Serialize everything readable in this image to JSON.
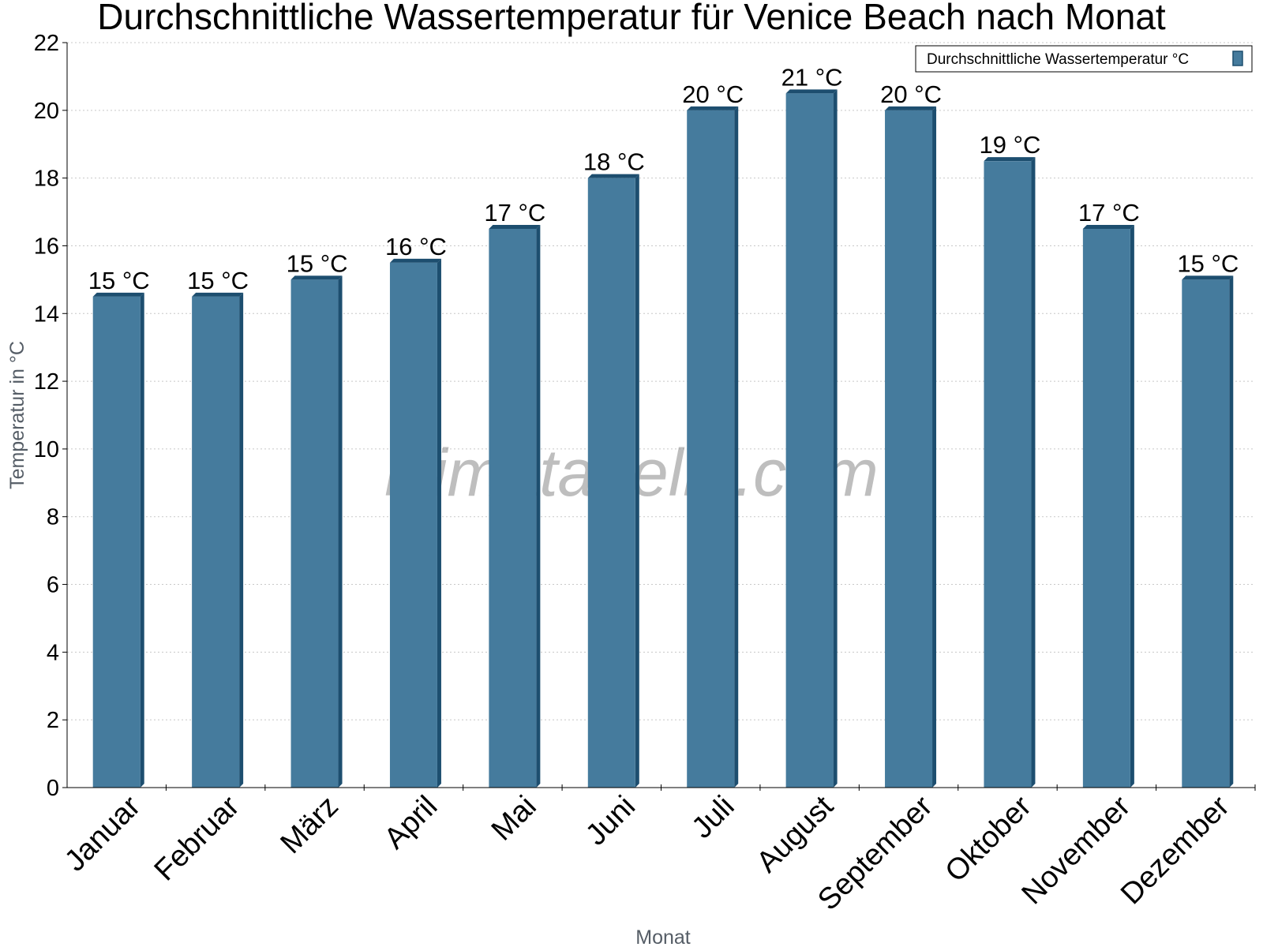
{
  "chart_data": {
    "type": "bar",
    "title": "Durchschnittliche Wassertemperatur für Venice Beach nach Monat",
    "xlabel": "Monat",
    "ylabel": "Temperatur in °C",
    "categories": [
      "Januar",
      "Februar",
      "März",
      "April",
      "Mai",
      "Juni",
      "Juli",
      "August",
      "September",
      "Oktober",
      "November",
      "Dezember"
    ],
    "series": [
      {
        "name": "Durchschnittliche Wassertemperatur °C",
        "values": [
          14.5,
          14.5,
          15,
          15.5,
          16.5,
          18,
          20,
          20.5,
          20,
          18.5,
          16.5,
          15
        ],
        "labels": [
          "15 °C",
          "15 °C",
          "15 °C",
          "16 °C",
          "17 °C",
          "18 °C",
          "20 °C",
          "21 °C",
          "20 °C",
          "19 °C",
          "17 °C",
          "15 °C"
        ],
        "color": "#457b9d",
        "edge_color": "#1d4e6f"
      }
    ],
    "ylim": [
      0,
      22
    ],
    "yticks": [
      0,
      2,
      4,
      6,
      8,
      10,
      12,
      14,
      16,
      18,
      20,
      22
    ],
    "grid": "horizontal dotted",
    "legend_position": "top-right"
  },
  "watermark": "klimatabelle.com"
}
